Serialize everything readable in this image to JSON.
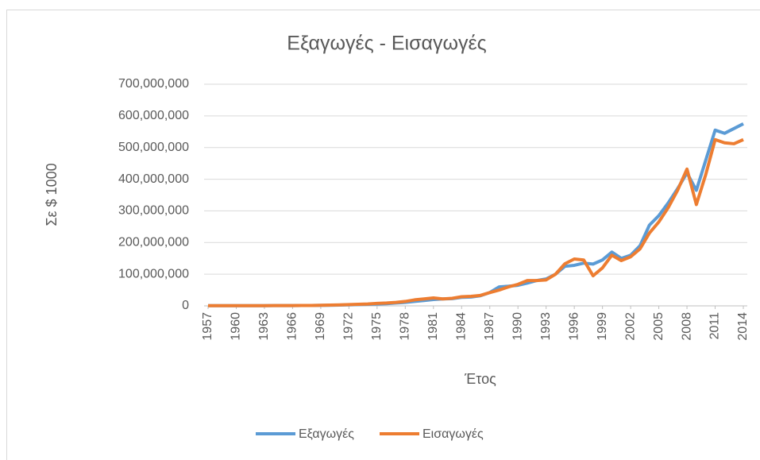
{
  "chart_data": {
    "type": "line",
    "title": "Εξαγωγές - Εισαγωγές",
    "x_label": "Έτος",
    "y_label": "Σε $ 1000",
    "x": [
      1957,
      1958,
      1959,
      1960,
      1961,
      1962,
      1963,
      1964,
      1965,
      1966,
      1967,
      1968,
      1969,
      1970,
      1971,
      1972,
      1973,
      1974,
      1975,
      1976,
      1977,
      1978,
      1979,
      1980,
      1981,
      1982,
      1983,
      1984,
      1985,
      1986,
      1987,
      1988,
      1989,
      1990,
      1991,
      1992,
      1993,
      1994,
      1995,
      1996,
      1997,
      1998,
      1999,
      2000,
      2001,
      2002,
      2003,
      2004,
      2005,
      2006,
      2007,
      2008,
      2009,
      2010,
      2011,
      2012,
      2013,
      2014
    ],
    "xlim": [
      1957,
      2014
    ],
    "xticks": [
      1957,
      1960,
      1963,
      1966,
      1969,
      1972,
      1975,
      1978,
      1981,
      1984,
      1987,
      1990,
      1993,
      1996,
      1999,
      2002,
      2005,
      2008,
      2011,
      2014
    ],
    "ylim": [
      0,
      700000000
    ],
    "yticks": [
      0,
      {
        "value": 100000000,
        "label": "100,000,000"
      },
      {
        "value": 200000000,
        "label": "200,000,000"
      },
      {
        "value": 300000000,
        "label": "300,000,000"
      },
      {
        "value": 400000000,
        "label": "400,000,000"
      },
      {
        "value": 500000000,
        "label": "500,000,000"
      },
      {
        "value": 600000000,
        "label": "600,000,000"
      },
      {
        "value": 700000000,
        "label": "700,000,000"
      }
    ],
    "grid": true,
    "legend": "bottom",
    "series": [
      {
        "name": "Εξαγωγές",
        "color": "#5b9bd5",
        "values": [
          500000,
          500000,
          500000,
          600000,
          600000,
          700000,
          700000,
          800000,
          900000,
          1000000,
          1100000,
          1200000,
          1500000,
          2000000,
          2500000,
          3000000,
          4000000,
          5000000,
          6000000,
          7000000,
          9000000,
          11000000,
          14000000,
          17000000,
          20000000,
          22000000,
          23000000,
          27000000,
          28000000,
          32000000,
          42000000,
          60000000,
          62000000,
          65000000,
          72000000,
          80000000,
          85000000,
          100000000,
          125000000,
          128000000,
          135000000,
          132000000,
          145000000,
          170000000,
          150000000,
          160000000,
          190000000,
          255000000,
          285000000,
          325000000,
          370000000,
          420000000,
          365000000,
          460000000,
          555000000,
          545000000,
          560000000,
          575000000
        ]
      },
      {
        "name": "Εισαγωγές",
        "color": "#ed7d31",
        "values": [
          500000,
          500000,
          500000,
          600000,
          600000,
          700000,
          700000,
          800000,
          900000,
          1000000,
          1100000,
          1300000,
          1800000,
          2500000,
          3000000,
          4000000,
          5000000,
          6000000,
          8000000,
          9000000,
          11000000,
          14000000,
          19000000,
          22000000,
          25000000,
          22000000,
          24000000,
          29000000,
          30000000,
          33000000,
          42000000,
          50000000,
          60000000,
          68000000,
          80000000,
          80000000,
          82000000,
          100000000,
          133000000,
          148000000,
          145000000,
          95000000,
          120000000,
          160000000,
          143000000,
          155000000,
          180000000,
          230000000,
          265000000,
          310000000,
          365000000,
          432000000,
          320000000,
          415000000,
          525000000,
          515000000,
          512000000,
          525000000
        ]
      }
    ]
  }
}
